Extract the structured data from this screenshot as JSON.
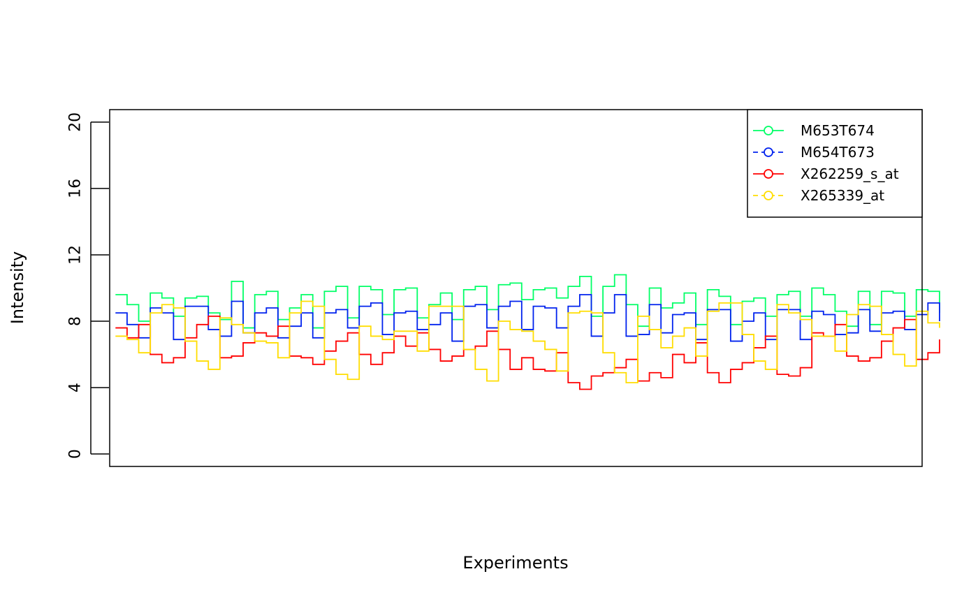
{
  "chart_data": {
    "type": "line",
    "step": true,
    "title": "",
    "xlabel": "Experiments",
    "ylabel": "Intensity",
    "ylim": [
      -0.75,
      20.75
    ],
    "yticks": [
      0,
      4,
      8,
      12,
      16,
      20
    ],
    "ytick_labels": [
      "0",
      "4",
      "8",
      "12",
      "16",
      "20"
    ],
    "xlim": [
      0.5,
      70.5
    ],
    "legend_position": "top-right",
    "series": [
      {
        "name": "M653T674",
        "color": "#00ff66",
        "values": [
          9.6,
          9.0,
          8.0,
          9.7,
          9.4,
          8.3,
          9.4,
          9.5,
          8.5,
          8.1,
          10.4,
          7.6,
          9.6,
          9.8,
          8.1,
          8.8,
          9.6,
          7.6,
          9.8,
          10.1,
          8.2,
          10.1,
          9.9,
          8.4,
          9.9,
          10.0,
          8.2,
          9.0,
          9.7,
          8.1,
          9.9,
          10.1,
          8.7,
          10.2,
          10.3,
          9.3,
          9.9,
          10.0,
          9.4,
          10.1,
          10.7,
          8.3,
          10.1,
          10.8,
          9.0,
          7.7,
          10.0,
          8.8,
          9.1,
          9.7,
          7.8,
          9.9,
          9.5,
          7.8,
          9.2,
          9.4,
          8.3,
          9.6,
          9.8,
          8.3,
          10.0,
          9.6,
          8.6,
          7.7,
          9.8,
          7.8,
          9.8,
          9.7,
          8.3,
          9.9,
          9.8,
          8.5
        ]
      },
      {
        "name": "M654T673",
        "color": "#0022ee",
        "values": [
          8.5,
          7.8,
          7.0,
          8.8,
          8.5,
          6.9,
          8.9,
          8.9,
          7.5,
          7.1,
          9.2,
          7.3,
          8.5,
          8.8,
          7.0,
          7.7,
          8.5,
          7.0,
          8.5,
          8.7,
          7.6,
          8.9,
          9.1,
          7.2,
          8.5,
          8.6,
          7.5,
          7.8,
          8.5,
          6.8,
          8.9,
          9.0,
          7.6,
          8.9,
          9.2,
          7.5,
          8.9,
          8.8,
          7.6,
          8.9,
          9.6,
          7.1,
          8.5,
          9.6,
          7.1,
          7.2,
          9.0,
          7.3,
          8.4,
          8.5,
          6.9,
          8.7,
          8.7,
          6.8,
          8.0,
          8.5,
          6.9,
          8.7,
          8.7,
          6.9,
          8.6,
          8.4,
          7.2,
          7.3,
          8.7,
          7.4,
          8.5,
          8.6,
          7.5,
          8.4,
          9.1,
          8.0
        ]
      },
      {
        "name": "X262259_s_at",
        "color": "#ff0000",
        "values": [
          7.6,
          7.0,
          7.8,
          6.0,
          5.5,
          5.8,
          7.0,
          7.8,
          8.3,
          5.8,
          5.9,
          6.7,
          7.3,
          7.1,
          7.7,
          5.9,
          5.8,
          5.4,
          6.2,
          6.8,
          7.3,
          6.0,
          5.4,
          6.1,
          7.1,
          6.5,
          7.3,
          6.3,
          5.6,
          5.9,
          6.3,
          6.5,
          7.4,
          6.3,
          5.1,
          5.8,
          5.1,
          5.0,
          6.1,
          4.3,
          3.9,
          4.7,
          4.9,
          5.2,
          5.7,
          4.4,
          4.9,
          4.6,
          6.0,
          5.5,
          6.7,
          4.9,
          4.3,
          5.1,
          5.5,
          6.4,
          7.1,
          4.8,
          4.7,
          5.2,
          7.3,
          7.1,
          7.8,
          5.9,
          5.6,
          5.8,
          6.8,
          7.6,
          8.1,
          5.7,
          6.1,
          6.9
        ]
      },
      {
        "name": "X265339_at",
        "color": "#ffdd00",
        "values": [
          7.1,
          6.9,
          6.1,
          8.5,
          9.0,
          8.8,
          6.8,
          5.6,
          5.1,
          8.2,
          7.8,
          7.3,
          6.8,
          6.7,
          5.8,
          8.5,
          9.2,
          8.9,
          5.7,
          4.8,
          4.5,
          7.7,
          7.1,
          6.9,
          7.4,
          7.4,
          6.2,
          8.9,
          8.9,
          8.9,
          6.3,
          5.1,
          4.4,
          8.0,
          7.5,
          7.4,
          6.8,
          6.3,
          5.0,
          8.5,
          8.6,
          8.5,
          6.1,
          4.9,
          4.3,
          8.3,
          7.5,
          6.4,
          7.1,
          7.6,
          5.9,
          8.6,
          9.1,
          9.1,
          7.2,
          5.6,
          5.1,
          9.0,
          8.5,
          8.1,
          7.1,
          7.1,
          6.2,
          8.4,
          9.0,
          8.9,
          7.2,
          6.0,
          5.3,
          8.6,
          7.9,
          7.6
        ]
      }
    ]
  }
}
